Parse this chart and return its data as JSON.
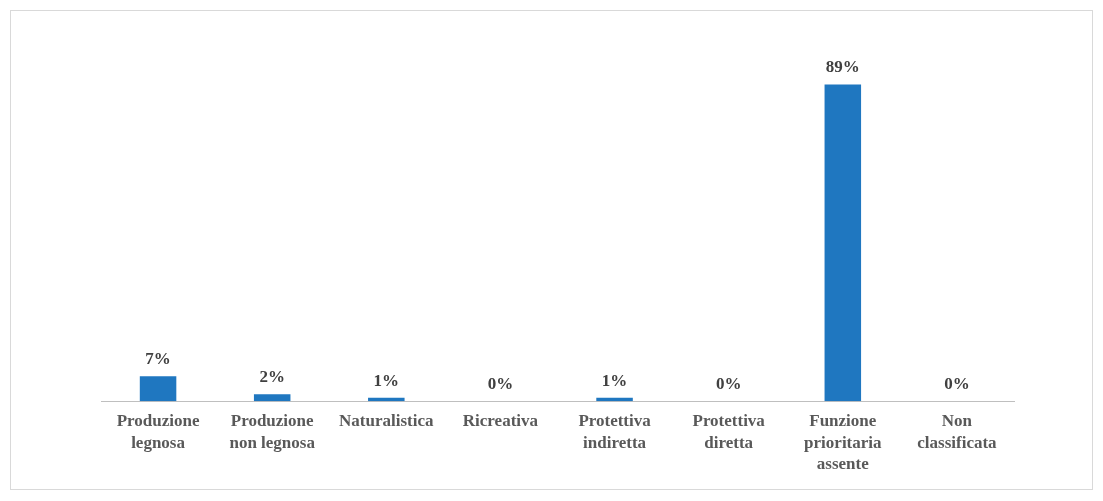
{
  "chart_data": {
    "type": "bar",
    "categories": [
      "Produzione legnosa",
      "Produzione non legnosa",
      "Naturalistica",
      "Ricreativa",
      "Protettiva indiretta",
      "Protettiva diretta",
      "Funzione prioritaria assente",
      "Non classificata"
    ],
    "values": [
      7,
      2,
      1,
      0,
      1,
      0,
      89,
      0
    ],
    "value_labels": [
      "7%",
      "2%",
      "1%",
      "0%",
      "1%",
      "0%",
      "89%",
      "0%"
    ],
    "color": "#1f77c0",
    "grid": false,
    "legend": false
  }
}
